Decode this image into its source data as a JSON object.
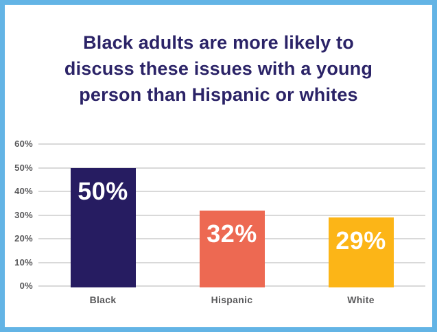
{
  "frame": {
    "border_color": "#63B4E5",
    "background_color": "#FFFFFF"
  },
  "title": {
    "lines": [
      "Black adults are more likely to",
      "discuss these issues with a young",
      "person than Hispanic or whites"
    ],
    "color": "#2B2367"
  },
  "chart_data": {
    "type": "bar",
    "title": "Black adults are more likely to discuss these issues with a young person than Hispanic or whites",
    "categories": [
      "Black",
      "Hispanic",
      "White"
    ],
    "values": [
      50,
      32,
      29
    ],
    "value_labels": [
      "50%",
      "32%",
      "29%"
    ],
    "bar_colors": [
      "#261C61",
      "#ED6952",
      "#FCB517"
    ],
    "xlabel": "",
    "ylabel": "",
    "ylim": [
      0,
      60
    ],
    "yticks": [
      {
        "value": 0,
        "label": "0%"
      },
      {
        "value": 10,
        "label": "10%"
      },
      {
        "value": 20,
        "label": "20%"
      },
      {
        "value": 30,
        "label": "30%"
      },
      {
        "value": 40,
        "label": "40%"
      },
      {
        "value": 50,
        "label": "50%"
      },
      {
        "value": 60,
        "label": "60%"
      }
    ],
    "grid": true,
    "gridline_color": "#D9D9D9",
    "axis_label_color": "#58585A",
    "value_label_color": "#FFFFFF",
    "legend": false
  }
}
